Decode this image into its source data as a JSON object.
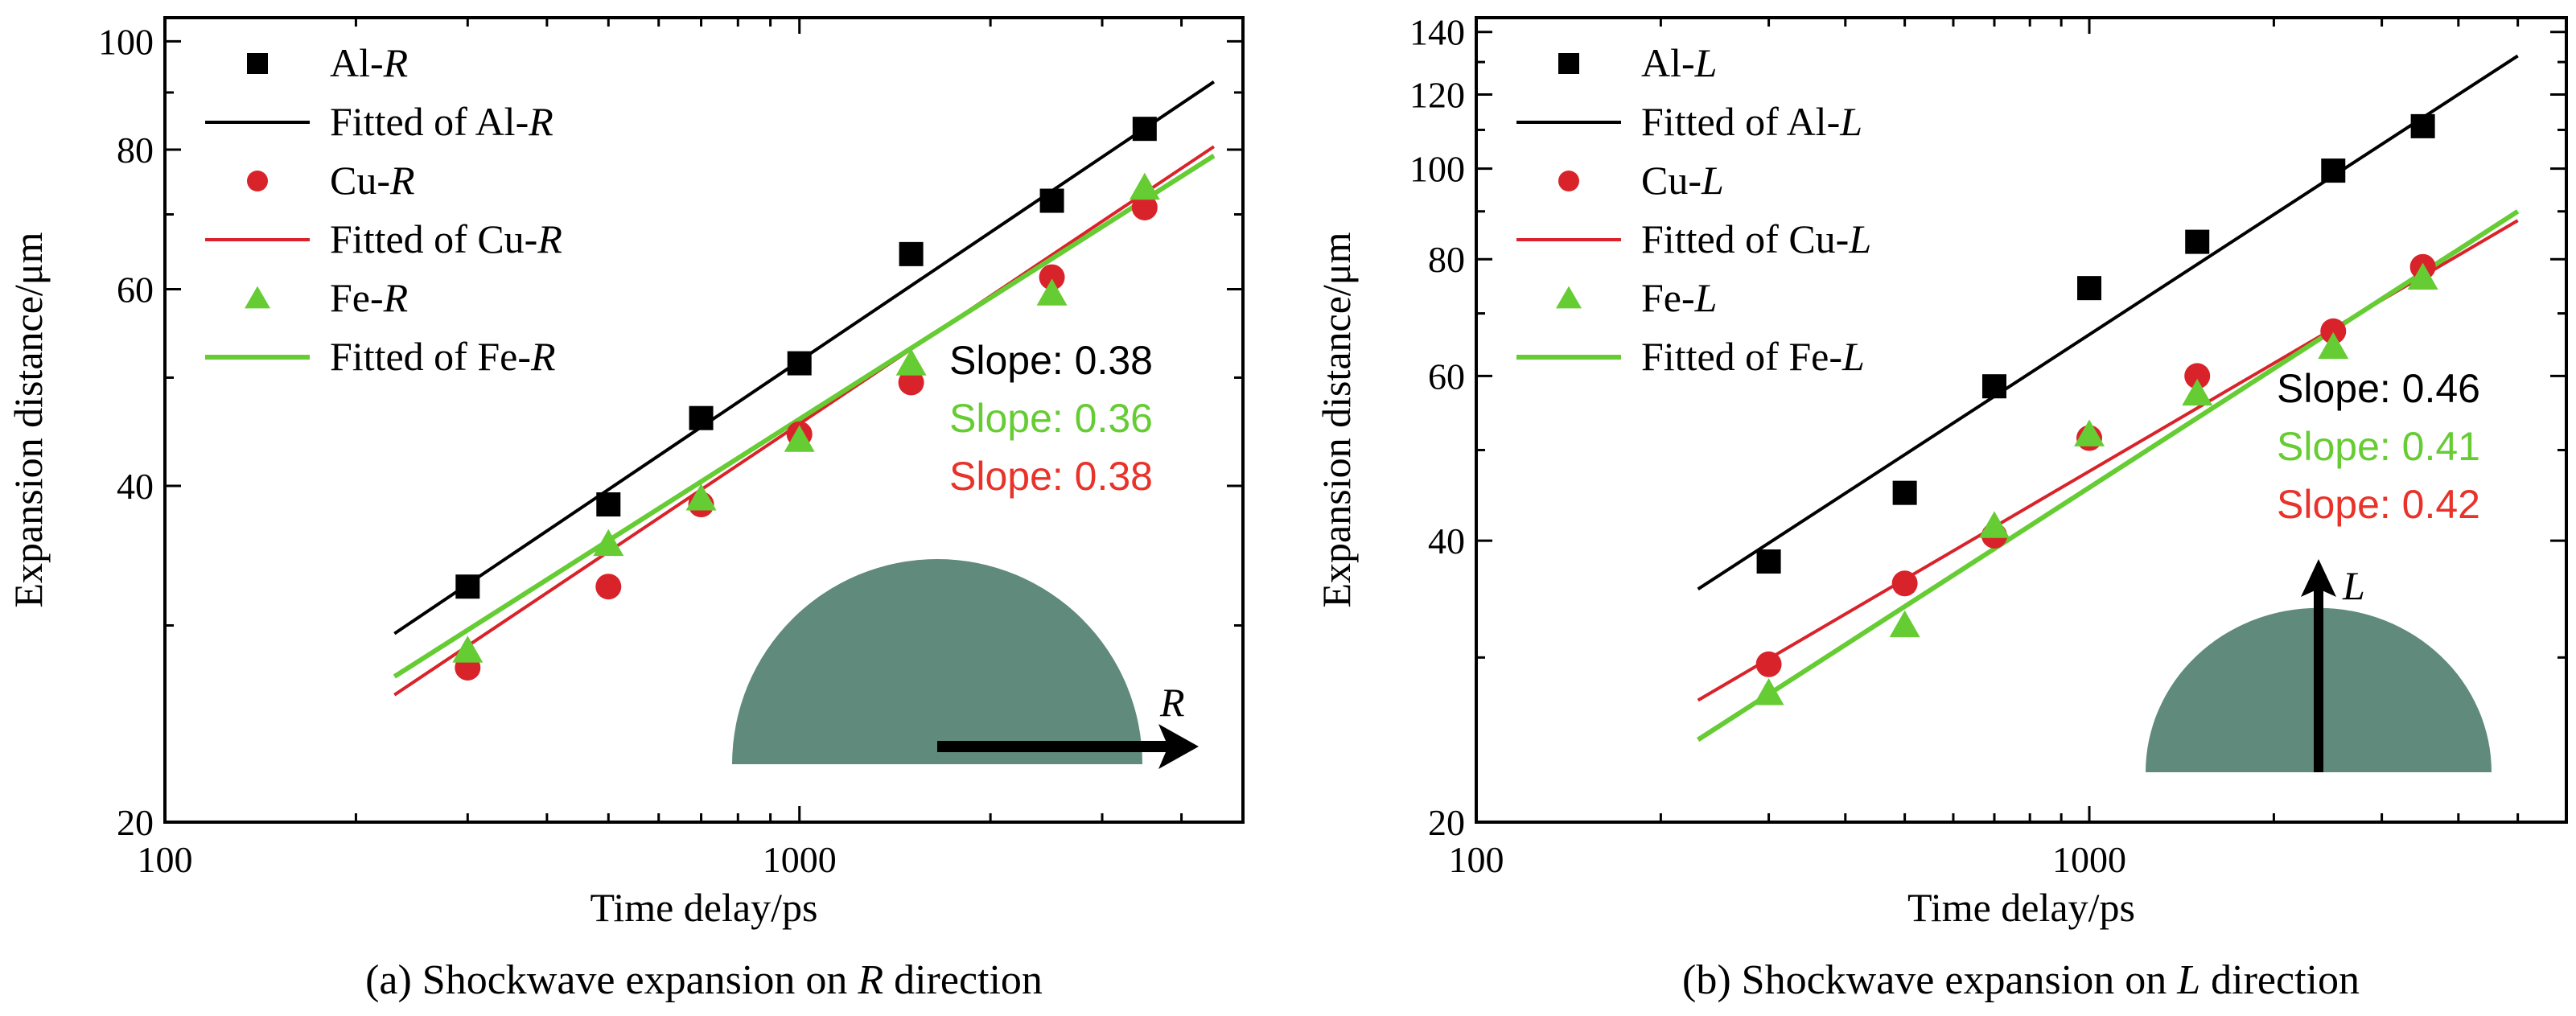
{
  "chart_data": [
    {
      "type": "scatter",
      "xscale": "log",
      "yscale": "log",
      "xlim": [
        100,
        5000
      ],
      "ylim": [
        20,
        105
      ],
      "xlabel": "Time delay/ps",
      "ylabel": "Expansion distance/μm",
      "xticks": [
        100,
        1000
      ],
      "yticks": [
        20,
        40,
        60,
        80,
        100
      ],
      "caption": {
        "prefix": "(a) Shockwave expansion on ",
        "italic": "R",
        "suffix": " direction"
      },
      "legend_position": "top-left",
      "series": [
        {
          "name_base": "Al-",
          "name_italic": "R",
          "fit_base": "Fitted of Al-",
          "marker": "square",
          "color": "#000000",
          "x": [
            300,
            500,
            700,
            1000,
            1500,
            2500,
            3500
          ],
          "y": [
            32.5,
            38.5,
            46.0,
            51.5,
            64.5,
            72.0,
            83.5
          ],
          "fit": {
            "x": [
              230,
              4500
            ],
            "y": [
              29.5,
              92.0
            ]
          }
        },
        {
          "name_base": "Cu-",
          "name_italic": "R",
          "fit_base": "Fitted of Cu-",
          "marker": "circle",
          "color": "#d9232a",
          "x": [
            300,
            500,
            700,
            1000,
            1500,
            2500,
            3500
          ],
          "y": [
            27.5,
            32.5,
            38.5,
            44.5,
            49.5,
            61.5,
            71.0
          ],
          "fit": {
            "x": [
              230,
              4500
            ],
            "y": [
              26.0,
              80.5
            ]
          }
        },
        {
          "name_base": "Fe-",
          "name_italic": "R",
          "fit_base": "Fitted of Fe-",
          "marker": "triangle",
          "color": "#66cc33",
          "x": [
            300,
            500,
            700,
            1000,
            1500,
            2500,
            3500
          ],
          "y": [
            28.5,
            35.5,
            39.0,
            44.0,
            51.5,
            59.5,
            74.0
          ],
          "fit": {
            "x": [
              230,
              4500
            ],
            "y": [
              27.0,
              79.0
            ]
          }
        }
      ],
      "slopes": [
        {
          "text": "Slope: 0.38",
          "color": "#000000"
        },
        {
          "text": "Slope: 0.36",
          "color": "#66cc33"
        },
        {
          "text": "Slope: 0.38",
          "color": "#e8322a"
        }
      ],
      "inset": {
        "label": "R",
        "shape_color": "#5f8a7c"
      }
    },
    {
      "type": "scatter",
      "xscale": "log",
      "yscale": "log",
      "xlim": [
        100,
        6000
      ],
      "ylim": [
        20,
        145
      ],
      "xlabel": "Time delay/ps",
      "ylabel": "Expansion distance/μm",
      "xticks": [
        100,
        1000
      ],
      "yticks": [
        20,
        40,
        60,
        80,
        100,
        120,
        140
      ],
      "caption": {
        "prefix": "(b) Shockwave expansion on ",
        "italic": "L",
        "suffix": " direction"
      },
      "legend_position": "top-left",
      "series": [
        {
          "name_base": "Al-",
          "name_italic": "L",
          "fit_base": "Fitted of Al-",
          "marker": "square",
          "color": "#000000",
          "x": [
            300,
            500,
            700,
            1000,
            1500,
            2500,
            3500
          ],
          "y": [
            38.0,
            45.0,
            58.5,
            74.5,
            83.5,
            99.5,
            111.0
          ],
          "fit": {
            "x": [
              230,
              5000
            ],
            "y": [
              35.5,
              132.0
            ]
          }
        },
        {
          "name_base": "Cu-",
          "name_italic": "L",
          "fit_base": "Fitted of Cu-",
          "marker": "circle",
          "color": "#d9232a",
          "x": [
            300,
            500,
            700,
            1000,
            1500,
            2500,
            3500
          ],
          "y": [
            29.5,
            36.0,
            40.5,
            51.5,
            60.0,
            67.0,
            78.5
          ],
          "fit": {
            "x": [
              230,
              5000
            ],
            "y": [
              27.0,
              88.0
            ]
          }
        },
        {
          "name_base": "Fe-",
          "name_italic": "L",
          "fit_base": "Fitted of Fe-",
          "marker": "triangle",
          "color": "#66cc33",
          "x": [
            300,
            500,
            700,
            1000,
            1500,
            2500,
            3500
          ],
          "y": [
            27.5,
            32.5,
            41.5,
            52.0,
            57.5,
            64.5,
            76.5
          ],
          "fit": {
            "x": [
              230,
              5000
            ],
            "y": [
              24.5,
              90.0
            ]
          }
        }
      ],
      "slopes": [
        {
          "text": "Slope: 0.46",
          "color": "#000000"
        },
        {
          "text": "Slope: 0.41",
          "color": "#66cc33"
        },
        {
          "text": "Slope: 0.42",
          "color": "#e8322a"
        }
      ],
      "inset": {
        "label": "L",
        "shape_color": "#5f8a7c"
      }
    }
  ]
}
